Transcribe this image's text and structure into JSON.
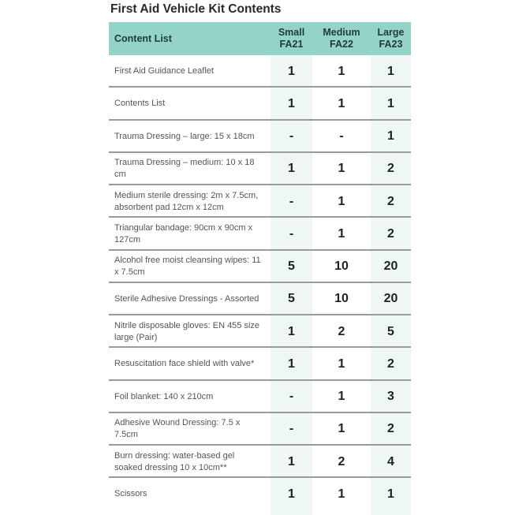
{
  "title": "First Aid Vehicle Kit Contents",
  "colors": {
    "header": "#93d3c8",
    "column_tint": "#eef7f5"
  },
  "header": {
    "content": "Content List",
    "sizes": [
      {
        "size": "Small",
        "code": "FA21"
      },
      {
        "size": "Medium",
        "code": "FA22"
      },
      {
        "size": "Large",
        "code": "FA23"
      }
    ]
  },
  "rows": [
    {
      "item": "First Aid Guidance Leaflet",
      "small": "1",
      "medium": "1",
      "large": "1"
    },
    {
      "item": "Contents List",
      "small": "1",
      "medium": "1",
      "large": "1"
    },
    {
      "item": "Trauma Dressing – large: 15 x 18cm",
      "small": "-",
      "medium": "-",
      "large": "1"
    },
    {
      "item": "Trauma Dressing – medium: 10 x 18 cm",
      "small": "1",
      "medium": "1",
      "large": "2"
    },
    {
      "item": "Medium sterile dressing: 2m x 7.5cm, absorbent pad 12cm x 12cm",
      "small": "-",
      "medium": "1",
      "large": "2"
    },
    {
      "item": "Triangular bandage: 90cm x 90cm x 127cm",
      "small": "-",
      "medium": "1",
      "large": "2"
    },
    {
      "item": "Alcohol free moist cleansing wipes: 11 x 7.5cm",
      "small": "5",
      "medium": "10",
      "large": "20"
    },
    {
      "item": "Sterile Adhesive Dressings - Assorted",
      "small": "5",
      "medium": "10",
      "large": "20"
    },
    {
      "item": "Nitrile disposable gloves: EN 455 size large  (Pair)",
      "small": "1",
      "medium": "2",
      "large": "5"
    },
    {
      "item": "Resuscitation face shield with valve*",
      "small": "1",
      "medium": "1",
      "large": "2"
    },
    {
      "item": "Foil blanket: 140 x 210cm",
      "small": "-",
      "medium": "1",
      "large": "3"
    },
    {
      "item": "Adhesive Wound Dressing: 7.5 x 7.5cm",
      "small": "-",
      "medium": "1",
      "large": "2"
    },
    {
      "item": "Burn dressing: water-based gel soaked dressing 10 x 10cm**",
      "small": "1",
      "medium": "2",
      "large": "4"
    },
    {
      "item": "Scissors",
      "small": "1",
      "medium": "1",
      "large": "1"
    }
  ]
}
